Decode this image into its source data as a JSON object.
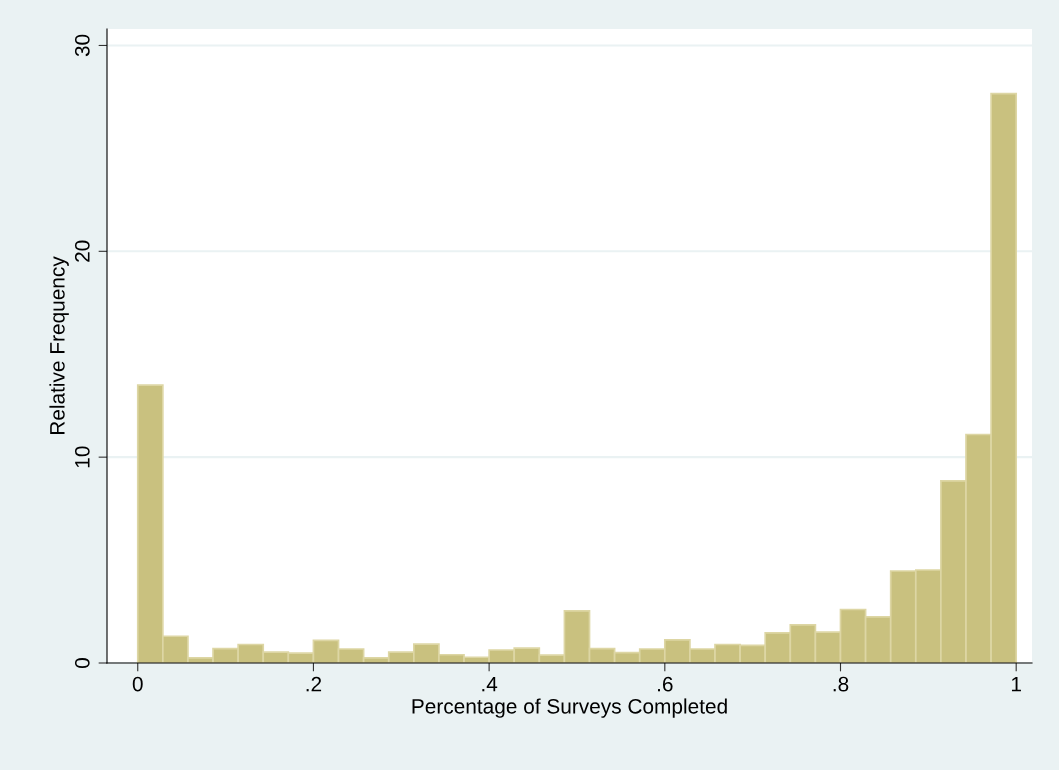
{
  "chart_data": {
    "type": "histogram",
    "xlabel": "Percentage of Surveys Completed",
    "ylabel": "Relative Frequency",
    "bins": [
      0,
      0.028571,
      0.057143,
      0.085714,
      0.114286,
      0.142857,
      0.171429,
      0.2,
      0.228571,
      0.257143,
      0.285714,
      0.314286,
      0.342857,
      0.371429,
      0.4,
      0.428571,
      0.457143,
      0.485714,
      0.514286,
      0.542857,
      0.571429,
      0.6,
      0.628571,
      0.657143,
      0.685714,
      0.714286,
      0.742857,
      0.771429,
      0.8,
      0.828571,
      0.857143,
      0.885714,
      0.914286,
      0.942857,
      0.971429,
      1
    ],
    "values": [
      13.5,
      1.3,
      0.25,
      0.7,
      0.9,
      0.53,
      0.48,
      1.1,
      0.68,
      0.25,
      0.53,
      0.92,
      0.4,
      0.28,
      0.63,
      0.72,
      0.38,
      2.53,
      0.7,
      0.5,
      0.68,
      1.12,
      0.68,
      0.9,
      0.86,
      1.46,
      1.85,
      1.5,
      2.6,
      2.24,
      4.47,
      4.52,
      8.85,
      11.1,
      27.66
    ],
    "color": "#c9c17f",
    "xlim": [
      -0.035,
      1.018
    ],
    "ylim": [
      0,
      30.8
    ],
    "xticks": [
      0,
      {
        "value": 0.2,
        "label": ".2"
      },
      {
        "value": 0.4,
        "label": ".4"
      },
      {
        "value": 0.6,
        "label": ".6"
      },
      {
        "value": 0.8,
        "label": ".8"
      },
      1
    ],
    "yticks": [
      0,
      10,
      20,
      30
    ],
    "grid": "y"
  }
}
